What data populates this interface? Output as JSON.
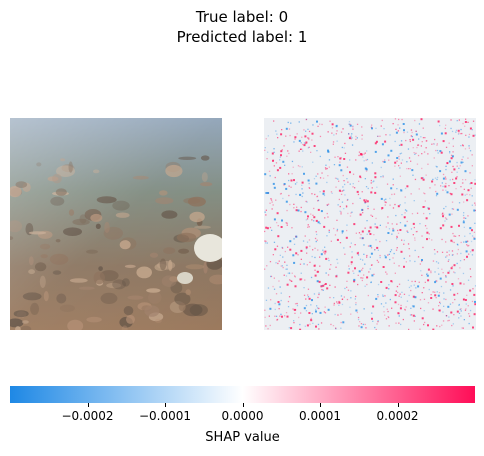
{
  "header": {
    "true_label": "True label: 0",
    "predicted_label": "Predicted label: 1"
  },
  "colors": {
    "negative": "#1e88e5",
    "neutral": "#ffffff",
    "positive": "#ff0d57"
  },
  "chart_data": {
    "type": "heatmap",
    "title": "True label: 0\nPredicted label: 1",
    "panels": [
      "input-image",
      "shap-overlay"
    ],
    "colorbar": {
      "label": "SHAP value",
      "range": [
        -0.0003,
        0.0003
      ],
      "ticks": [
        -0.0002,
        -0.0001,
        0.0,
        0.0001,
        0.0002
      ],
      "tick_labels": [
        "−0.0002",
        "−0.0001",
        "0.0000",
        "0.0001",
        "0.0002"
      ],
      "colormap": "blue-white-red"
    }
  }
}
